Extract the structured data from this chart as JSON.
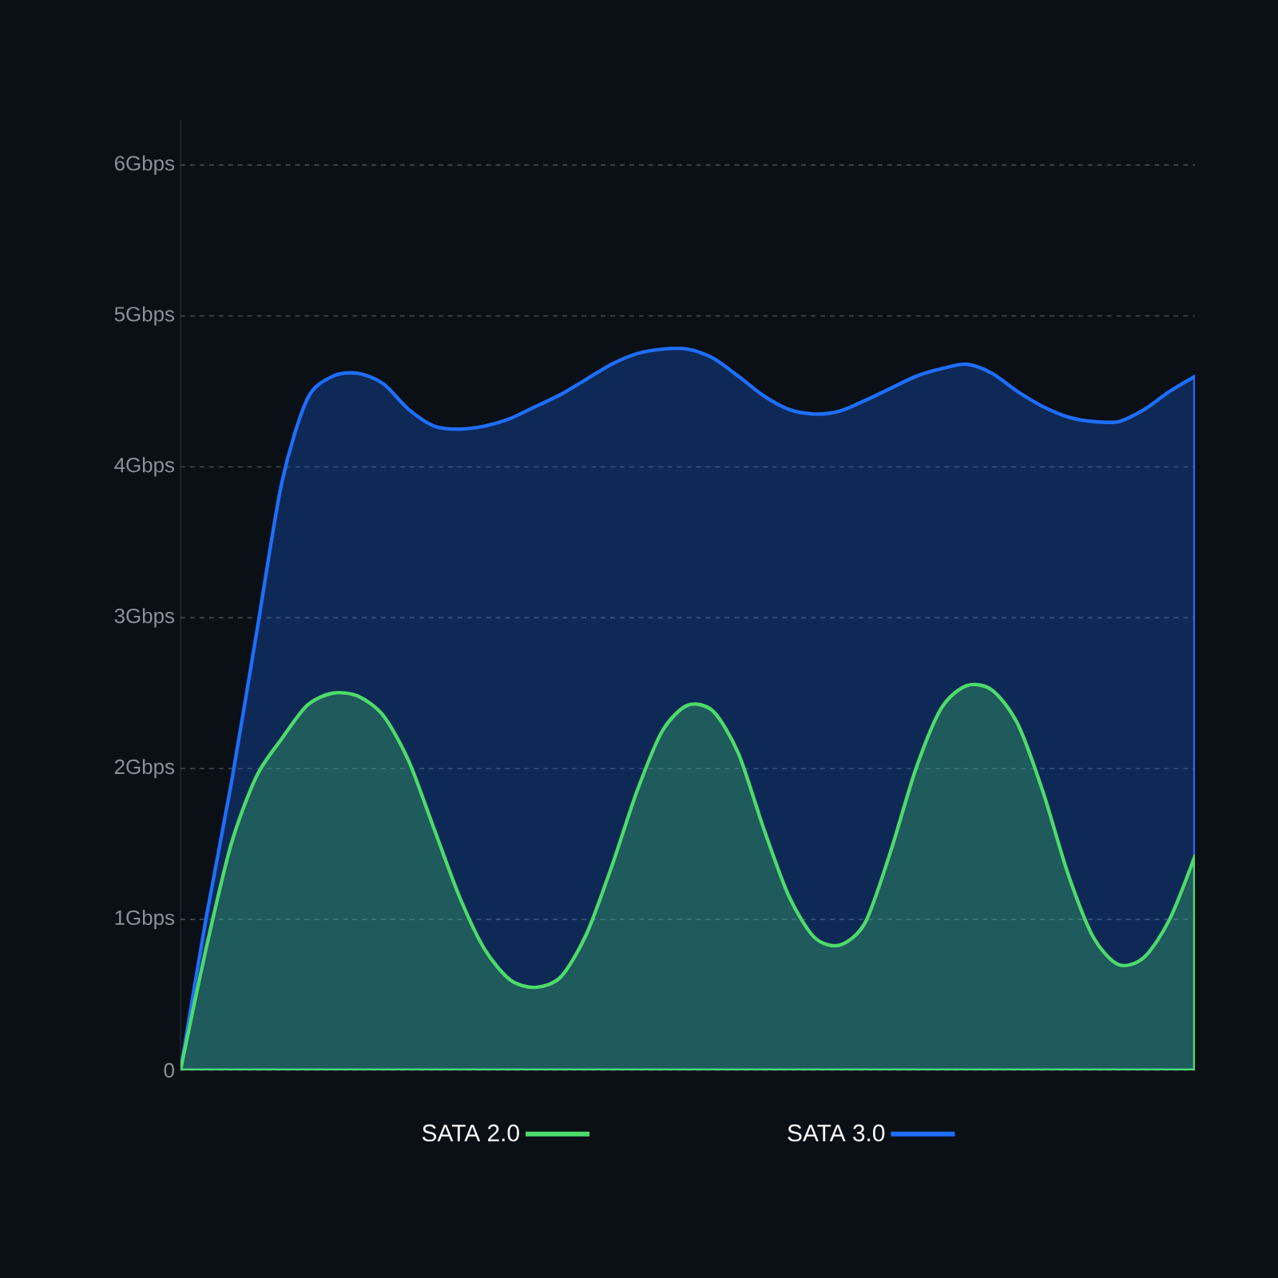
{
  "chart_data": {
    "type": "area",
    "categories": [
      null,
      null,
      null,
      null,
      null,
      null,
      null,
      null,
      null,
      null,
      null,
      null,
      null,
      null,
      null,
      null,
      null,
      null,
      null,
      null,
      null,
      null,
      null,
      null,
      null,
      null,
      null,
      null,
      null,
      null,
      null,
      null,
      null,
      null,
      null,
      null,
      null,
      null,
      null,
      null,
      null
    ],
    "series": [
      {
        "name": "SATA 2.0",
        "color": "#4ddb6a",
        "values": [
          0,
          0.8,
          1.5,
          1.95,
          2.2,
          2.42,
          2.5,
          2.48,
          2.35,
          2.05,
          1.6,
          1.15,
          0.8,
          0.6,
          0.55,
          0.62,
          0.9,
          1.35,
          1.85,
          2.25,
          2.42,
          2.38,
          2.1,
          1.6,
          1.15,
          0.88,
          0.83,
          0.98,
          1.45,
          2.0,
          2.4,
          2.55,
          2.52,
          2.3,
          1.85,
          1.3,
          0.88,
          0.7,
          0.75,
          1.0,
          1.42
        ]
      },
      {
        "name": "SATA 3.0",
        "color": "#1e6fff",
        "values": [
          0,
          1.0,
          1.9,
          2.9,
          3.9,
          4.45,
          4.6,
          4.62,
          4.55,
          4.38,
          4.27,
          4.25,
          4.27,
          4.32,
          4.4,
          4.48,
          4.58,
          4.68,
          4.75,
          4.78,
          4.78,
          4.72,
          4.6,
          4.47,
          4.38,
          4.35,
          4.37,
          4.44,
          4.52,
          4.6,
          4.65,
          4.68,
          4.62,
          4.5,
          4.4,
          4.33,
          4.3,
          4.3,
          4.38,
          4.5,
          4.6
        ]
      }
    ],
    "ylim": [
      0,
      6.3
    ],
    "yticks": [
      0,
      {
        "value": 1,
        "label": "1Gbps"
      },
      {
        "value": 2,
        "label": "2Gbps"
      },
      {
        "value": 3,
        "label": "3Gbps"
      },
      {
        "value": 4,
        "label": "4Gbps"
      },
      {
        "value": 5,
        "label": "5Gbps"
      },
      {
        "value": 6,
        "label": "6Gbps"
      }
    ],
    "grid": "y",
    "legend": "bottom",
    "tick_labels": "y"
  }
}
